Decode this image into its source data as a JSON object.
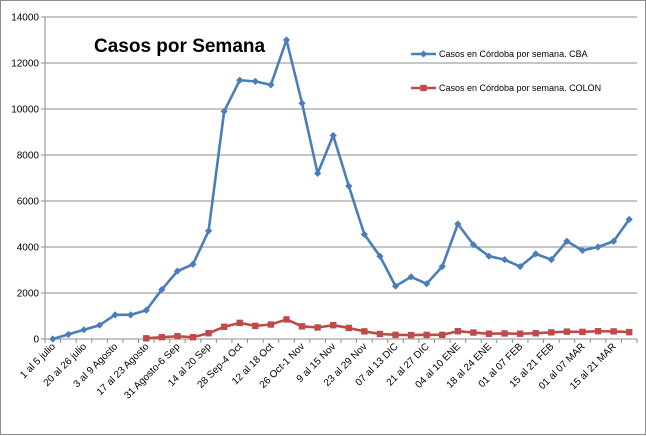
{
  "chart_data": {
    "type": "line",
    "title": "Casos por Semana",
    "xlabel": "",
    "ylabel": "",
    "ylim": [
      0,
      14000
    ],
    "yticks": [
      0,
      2000,
      4000,
      6000,
      8000,
      10000,
      12000,
      14000
    ],
    "grid": "horizontal",
    "legend_position": "top-right",
    "category_labels": [
      "1 al 5 julio",
      "20 al 26 julio",
      "3 al 9 Agosto",
      "17 al 23 Agosto",
      "31 Agosto-6 Sep",
      "14 al 20 Sep",
      "28 Sep-4 Oct",
      "12 al 18 Oct",
      "26 Oct-1 Nov",
      "9 al 15 Nov",
      "23 al 29 Nov",
      "07 al 13 DIC",
      "21 al 27 DIC",
      "04 al 10 ENE",
      "18 al 24 ENE",
      "01 al 07 FEB",
      "15 al 21 FEB",
      "01 al 07 MAR",
      "15 al 21 MAR"
    ],
    "label_every": 2,
    "num_points": 38,
    "series": [
      {
        "name": "Casos en Córdoba por semana. CBA",
        "color": "#4A7EBB",
        "marker": "diamond",
        "values": [
          0,
          200,
          400,
          600,
          1050,
          1050,
          1250,
          2150,
          2950,
          3250,
          4700,
          9900,
          11250,
          11200,
          11050,
          13000,
          10250,
          7200,
          8850,
          6650,
          4550,
          3600,
          2300,
          2700,
          2400,
          3150,
          5000,
          4100,
          3600,
          3450,
          3150,
          3700,
          3450,
          4250,
          3850,
          4000,
          4250,
          5200
        ]
      },
      {
        "name": "Casos en Córdoba por semana. COLON",
        "color": "#BE4B48",
        "marker": "square",
        "values": [
          null,
          null,
          null,
          null,
          null,
          null,
          30,
          80,
          120,
          80,
          250,
          530,
          700,
          570,
          630,
          850,
          550,
          500,
          600,
          480,
          330,
          220,
          180,
          170,
          180,
          180,
          340,
          280,
          230,
          240,
          230,
          250,
          290,
          320,
          310,
          340,
          330,
          300
        ]
      }
    ]
  }
}
